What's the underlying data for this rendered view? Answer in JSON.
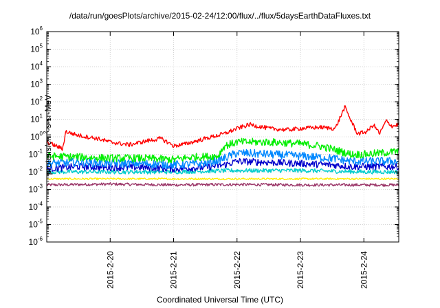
{
  "title": "/data/run/goesPlots/archive/2015-02-24/12:00/flux/../flux/5daysEarthDataFluxes.txt",
  "chart_data": {
    "type": "line",
    "title": "/data/run/goesPlots/archive/2015-02-24/12:00/flux/../flux/5daysEarthDataFluxes.txt",
    "xlabel": "Coordinated Universal Time (UTC)",
    "ylabel_base": "protons/cm",
    "ylabel_sup": "2",
    "ylabel_rest": "-s-sr-MeV",
    "x_ticks": [
      "2015-2-20",
      "2015-2-21",
      "2015-2-22",
      "2015-2-23",
      "2015-2-24"
    ],
    "x_tick_days": [
      19.0,
      20.0,
      21.0,
      22.0,
      23.0
    ],
    "xlim_days": [
      18.0,
      23.55
    ],
    "y_scale": "log",
    "ylim": [
      1e-06,
      1000000.0
    ],
    "y_tick_exponents": [
      -6,
      -5,
      -4,
      -3,
      -2,
      -1,
      0,
      1,
      2,
      3,
      4,
      5,
      6
    ],
    "y_tick_base": "10",
    "grid": true,
    "legend": "none",
    "series": [
      {
        "color": "#ff0000",
        "noise": 0.12,
        "points": [
          [
            18.0,
            0.5
          ],
          [
            18.15,
            0.3
          ],
          [
            18.25,
            0.2
          ],
          [
            18.3,
            2.0
          ],
          [
            18.5,
            1.2
          ],
          [
            18.8,
            0.8
          ],
          [
            19.0,
            0.5
          ],
          [
            19.3,
            0.35
          ],
          [
            19.6,
            0.6
          ],
          [
            19.8,
            0.8
          ],
          [
            19.9,
            0.5
          ],
          [
            20.0,
            0.3
          ],
          [
            20.2,
            0.4
          ],
          [
            20.5,
            0.8
          ],
          [
            20.8,
            1.5
          ],
          [
            21.0,
            3.0
          ],
          [
            21.2,
            5.0
          ],
          [
            21.5,
            3.0
          ],
          [
            21.8,
            2.5
          ],
          [
            22.0,
            3.0
          ],
          [
            22.3,
            3.5
          ],
          [
            22.55,
            3.0
          ],
          [
            22.65,
            20.0
          ],
          [
            22.7,
            50.0
          ],
          [
            22.8,
            8.0
          ],
          [
            22.9,
            1.5
          ],
          [
            23.05,
            2.0
          ],
          [
            23.15,
            5.0
          ],
          [
            23.25,
            1.5
          ],
          [
            23.35,
            8.0
          ],
          [
            23.45,
            4.0
          ],
          [
            23.55,
            5.0
          ]
        ]
      },
      {
        "color": "#00ee00",
        "noise": 0.22,
        "points": [
          [
            18.0,
            0.08
          ],
          [
            18.5,
            0.07
          ],
          [
            19.0,
            0.06
          ],
          [
            19.5,
            0.06
          ],
          [
            20.0,
            0.05
          ],
          [
            20.3,
            0.07
          ],
          [
            20.7,
            0.08
          ],
          [
            20.8,
            0.3
          ],
          [
            21.0,
            0.5
          ],
          [
            21.5,
            0.5
          ],
          [
            22.0,
            0.4
          ],
          [
            22.3,
            0.3
          ],
          [
            22.5,
            0.2
          ],
          [
            22.8,
            0.1
          ],
          [
            23.0,
            0.1
          ],
          [
            23.3,
            0.12
          ],
          [
            23.55,
            0.15
          ]
        ]
      },
      {
        "color": "#0088ff",
        "noise": 0.24,
        "points": [
          [
            18.0,
            0.03
          ],
          [
            18.5,
            0.035
          ],
          [
            19.0,
            0.03
          ],
          [
            19.5,
            0.03
          ],
          [
            20.0,
            0.025
          ],
          [
            20.5,
            0.03
          ],
          [
            20.8,
            0.06
          ],
          [
            21.0,
            0.12
          ],
          [
            21.5,
            0.1
          ],
          [
            22.0,
            0.08
          ],
          [
            22.5,
            0.06
          ],
          [
            22.8,
            0.04
          ],
          [
            23.2,
            0.04
          ],
          [
            23.55,
            0.04
          ]
        ]
      },
      {
        "color": "#0000cc",
        "noise": 0.2,
        "points": [
          [
            18.0,
            0.015
          ],
          [
            18.5,
            0.02
          ],
          [
            19.0,
            0.018
          ],
          [
            19.5,
            0.018
          ],
          [
            20.0,
            0.015
          ],
          [
            20.5,
            0.018
          ],
          [
            20.8,
            0.025
          ],
          [
            21.0,
            0.04
          ],
          [
            21.5,
            0.035
          ],
          [
            22.0,
            0.03
          ],
          [
            22.5,
            0.025
          ],
          [
            22.8,
            0.02
          ],
          [
            23.2,
            0.02
          ],
          [
            23.55,
            0.02
          ]
        ]
      },
      {
        "color": "#00cccc",
        "noise": 0.12,
        "points": [
          [
            18.0,
            0.01
          ],
          [
            19.0,
            0.01
          ],
          [
            20.0,
            0.01
          ],
          [
            21.0,
            0.012
          ],
          [
            22.0,
            0.012
          ],
          [
            23.0,
            0.01
          ],
          [
            23.55,
            0.01
          ]
        ]
      },
      {
        "color": "#ffee00",
        "noise": 0.05,
        "points": [
          [
            18.0,
            0.004
          ],
          [
            19.0,
            0.004
          ],
          [
            20.0,
            0.004
          ],
          [
            21.0,
            0.004
          ],
          [
            22.0,
            0.004
          ],
          [
            23.0,
            0.004
          ],
          [
            23.55,
            0.004
          ]
        ]
      },
      {
        "color": "#993366",
        "noise": 0.08,
        "points": [
          [
            18.0,
            0.0018
          ],
          [
            19.0,
            0.002
          ],
          [
            20.0,
            0.0018
          ],
          [
            21.0,
            0.0019
          ],
          [
            22.0,
            0.0018
          ],
          [
            23.0,
            0.0018
          ],
          [
            23.55,
            0.0018
          ]
        ]
      }
    ]
  }
}
